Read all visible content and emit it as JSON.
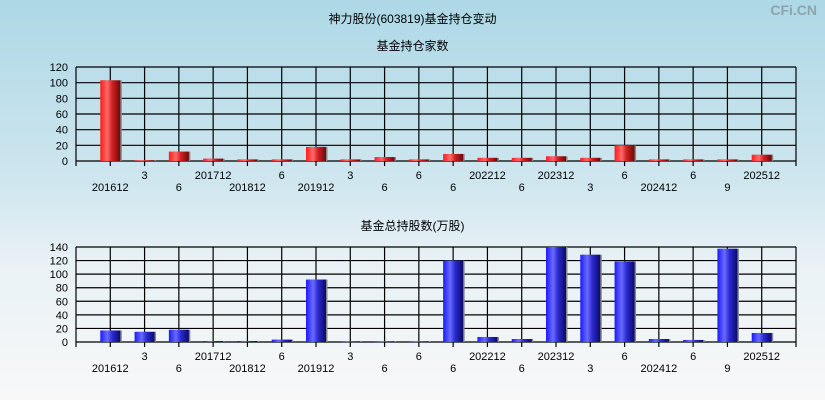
{
  "title": "神力股份(603819)基金持仓变动",
  "watermark": "CFi.CN",
  "colors": {
    "bar1": "#e0101a",
    "bar2": "#1a1af0",
    "grid": "#000000",
    "background_top": "#add8e6"
  },
  "chart_data": [
    {
      "type": "bar",
      "title": "基金持仓家数",
      "categories": [
        "201612",
        "3",
        "6",
        "201712",
        "201812",
        "6",
        "201912",
        "3",
        "6",
        "6",
        "6",
        "202212",
        "6",
        "202312",
        "3",
        "6",
        "202412",
        "6",
        "9",
        "202512"
      ],
      "values": [
        103,
        1,
        12,
        3,
        2,
        2,
        18,
        2,
        5,
        2,
        9,
        4,
        4,
        6,
        4,
        20,
        2,
        2,
        2,
        8
      ],
      "ylim": [
        0,
        120
      ],
      "yticks": [
        0,
        20,
        40,
        60,
        80,
        100,
        120
      ],
      "grid": true
    },
    {
      "type": "bar",
      "title": "基金总持股数(万股)",
      "categories": [
        "201612",
        "3",
        "6",
        "201712",
        "201812",
        "6",
        "201912",
        "3",
        "6",
        "6",
        "6",
        "202212",
        "6",
        "202312",
        "3",
        "6",
        "202412",
        "6",
        "9",
        "202512"
      ],
      "values": [
        17,
        15,
        18,
        1.5,
        1.5,
        3.5,
        92,
        1,
        1,
        1,
        120,
        7.4,
        4.4,
        140,
        128.6,
        118.7,
        4.4,
        3,
        137.4,
        13.3
      ],
      "ylim": [
        0,
        140
      ],
      "yticks": [
        0,
        20,
        40,
        60,
        80,
        100,
        120,
        140
      ],
      "grid": true
    }
  ]
}
